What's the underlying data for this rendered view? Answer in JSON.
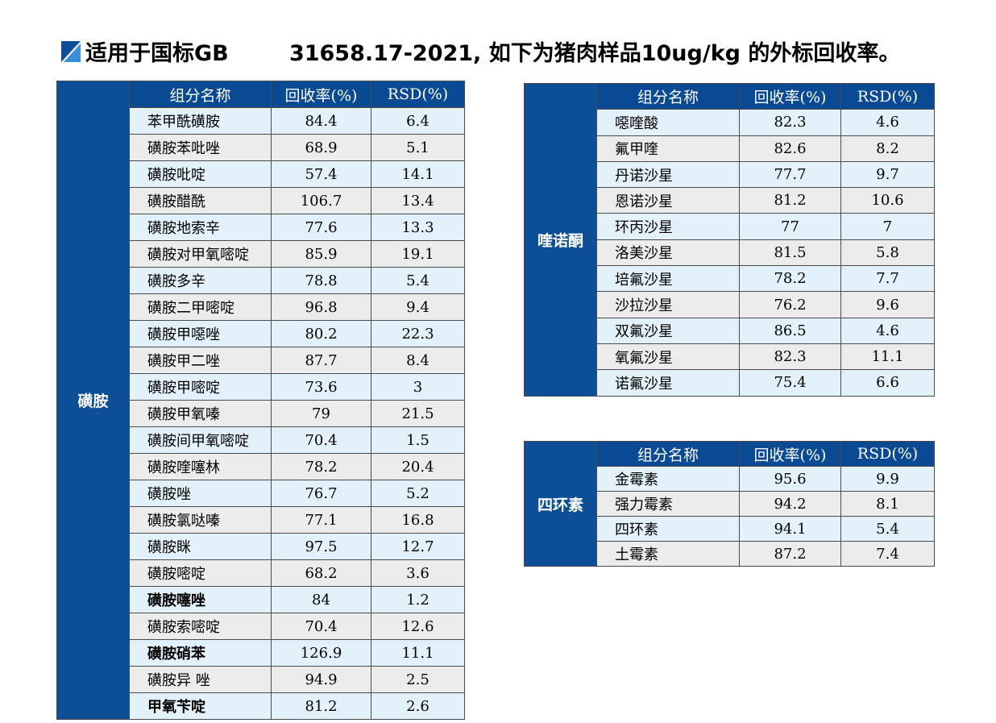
{
  "header": {
    "title": "适用于国标GB        31658.17-2021, 如下为猪肉样品10ug/kg 的外标回收率。"
  },
  "tables": [
    {
      "group": "磺胺",
      "columns": [
        "组分名称",
        "回收率(%)",
        "RSD(%)"
      ],
      "rows": [
        {
          "name": "苯甲酰磺胺",
          "recovery": "84.4",
          "rsd": "6.4"
        },
        {
          "name": "磺胺苯吡唑",
          "recovery": "68.9",
          "rsd": "5.1"
        },
        {
          "name": "磺胺吡啶",
          "recovery": "57.4",
          "rsd": "14.1"
        },
        {
          "name": "磺胺醋酰",
          "recovery": "106.7",
          "rsd": "13.4"
        },
        {
          "name": "磺胺地索辛",
          "recovery": "77.6",
          "rsd": "13.3"
        },
        {
          "name": "磺胺对甲氧嘧啶",
          "recovery": "85.9",
          "rsd": "19.1"
        },
        {
          "name": "磺胺多辛",
          "recovery": "78.8",
          "rsd": "5.4"
        },
        {
          "name": "磺胺二甲嘧啶",
          "recovery": "96.8",
          "rsd": "9.4"
        },
        {
          "name": "磺胺甲噁唑",
          "recovery": "80.2",
          "rsd": "22.3"
        },
        {
          "name": "磺胺甲二唑",
          "recovery": "87.7",
          "rsd": "8.4"
        },
        {
          "name": "磺胺甲嘧啶",
          "recovery": "73.6",
          "rsd": "3"
        },
        {
          "name": "磺胺甲氧嗪",
          "recovery": "79",
          "rsd": "21.5"
        },
        {
          "name": "磺胺间甲氧嘧啶",
          "recovery": "70.4",
          "rsd": "1.5"
        },
        {
          "name": "磺胺喹噻林",
          "recovery": "78.2",
          "rsd": "20.4"
        },
        {
          "name": "磺胺唑",
          "recovery": "76.7",
          "rsd": "5.2"
        },
        {
          "name": "磺胺氯哒嗪",
          "recovery": "77.1",
          "rsd": "16.8"
        },
        {
          "name": "磺胺眯",
          "recovery": "97.5",
          "rsd": "12.7"
        },
        {
          "name": "磺胺嘧啶",
          "recovery": "68.2",
          "rsd": "3.6"
        },
        {
          "name": "磺胺噻唑",
          "recovery": "84",
          "rsd": "1.2",
          "bold": true
        },
        {
          "name": "磺胺索嘧啶",
          "recovery": "70.4",
          "rsd": "12.6"
        },
        {
          "name": "磺胺硝苯",
          "recovery": "126.9",
          "rsd": "11.1",
          "bold": true
        },
        {
          "name": "磺胺异 唑",
          "recovery": "94.9",
          "rsd": "2.5"
        },
        {
          "name": "甲氧苄啶",
          "recovery": "81.2",
          "rsd": "2.6",
          "bold": true
        }
      ]
    },
    {
      "group": "喹诺酮",
      "columns": [
        "组分名称",
        "回收率(%)",
        "RSD(%)"
      ],
      "rows": [
        {
          "name": "噁喹酸",
          "recovery": "82.3",
          "rsd": "4.6"
        },
        {
          "name": "氟甲喹",
          "recovery": "82.6",
          "rsd": "8.2"
        },
        {
          "name": "丹诺沙星",
          "recovery": "77.7",
          "rsd": "9.7"
        },
        {
          "name": "恩诺沙星",
          "recovery": "81.2",
          "rsd": "10.6"
        },
        {
          "name": "环丙沙星",
          "recovery": "77",
          "rsd": "7"
        },
        {
          "name": "洛美沙星",
          "recovery": "81.5",
          "rsd": "5.8"
        },
        {
          "name": "培氟沙星",
          "recovery": "78.2",
          "rsd": "7.7"
        },
        {
          "name": "沙拉沙星",
          "recovery": "76.2",
          "rsd": "9.6"
        },
        {
          "name": "双氟沙星",
          "recovery": "86.5",
          "rsd": "4.6"
        },
        {
          "name": "氧氟沙星",
          "recovery": "82.3",
          "rsd": "11.1"
        },
        {
          "name": "诺氟沙星",
          "recovery": "75.4",
          "rsd": "6.6"
        }
      ]
    },
    {
      "group": "四环素",
      "columns": [
        "组分名称",
        "回收率(%)",
        "RSD(%)"
      ],
      "rows": [
        {
          "name": "金霉素",
          "recovery": "95.6",
          "rsd": "9.9"
        },
        {
          "name": "强力霉素",
          "recovery": "94.2",
          "rsd": "8.1"
        },
        {
          "name": "四环素",
          "recovery": "94.1",
          "rsd": "5.4"
        },
        {
          "name": "土霉素",
          "recovery": "87.2",
          "rsd": "7.4"
        }
      ]
    }
  ]
}
